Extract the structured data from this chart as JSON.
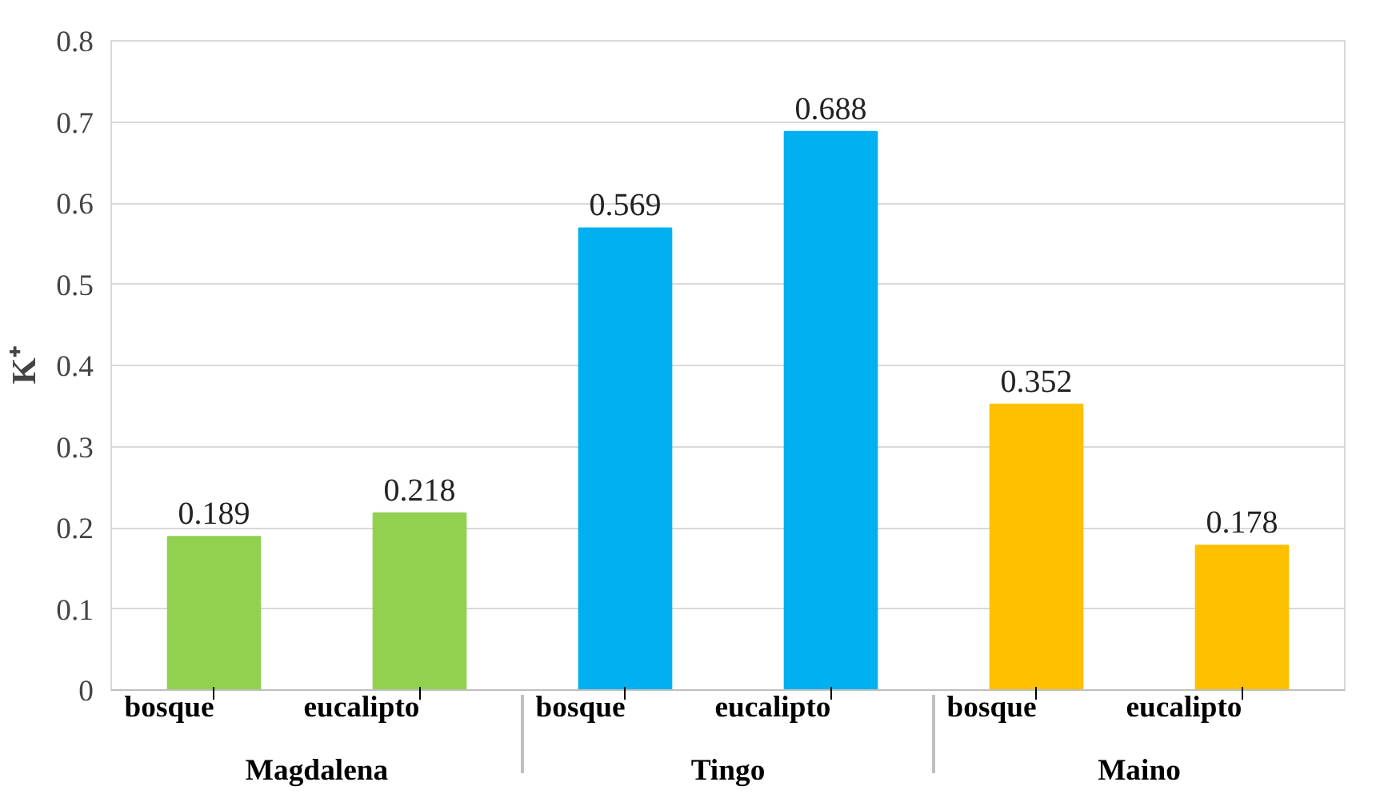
{
  "chart_data": {
    "type": "bar",
    "ylabel": "K⁺",
    "categories": [
      "bosque",
      "eucalipto",
      "bosque",
      "eucalipto",
      "bosque",
      "eucalipto"
    ],
    "annotations": [
      "Magdalena",
      "Tingo",
      "Maino"
    ],
    "values": [
      0.189,
      0.218,
      0.569,
      0.688,
      0.352,
      0.178
    ],
    "colors": [
      "#92d050",
      "#92d050",
      "#00b0f0",
      "#00b0f0",
      "#ffc000",
      "#ffc000"
    ],
    "ylim": [
      0,
      0.8
    ],
    "yticks": [
      0,
      0.1,
      0.2,
      0.3,
      0.4,
      0.5,
      0.6,
      0.7,
      0.8
    ],
    "grid": "y",
    "data_labels": true
  }
}
